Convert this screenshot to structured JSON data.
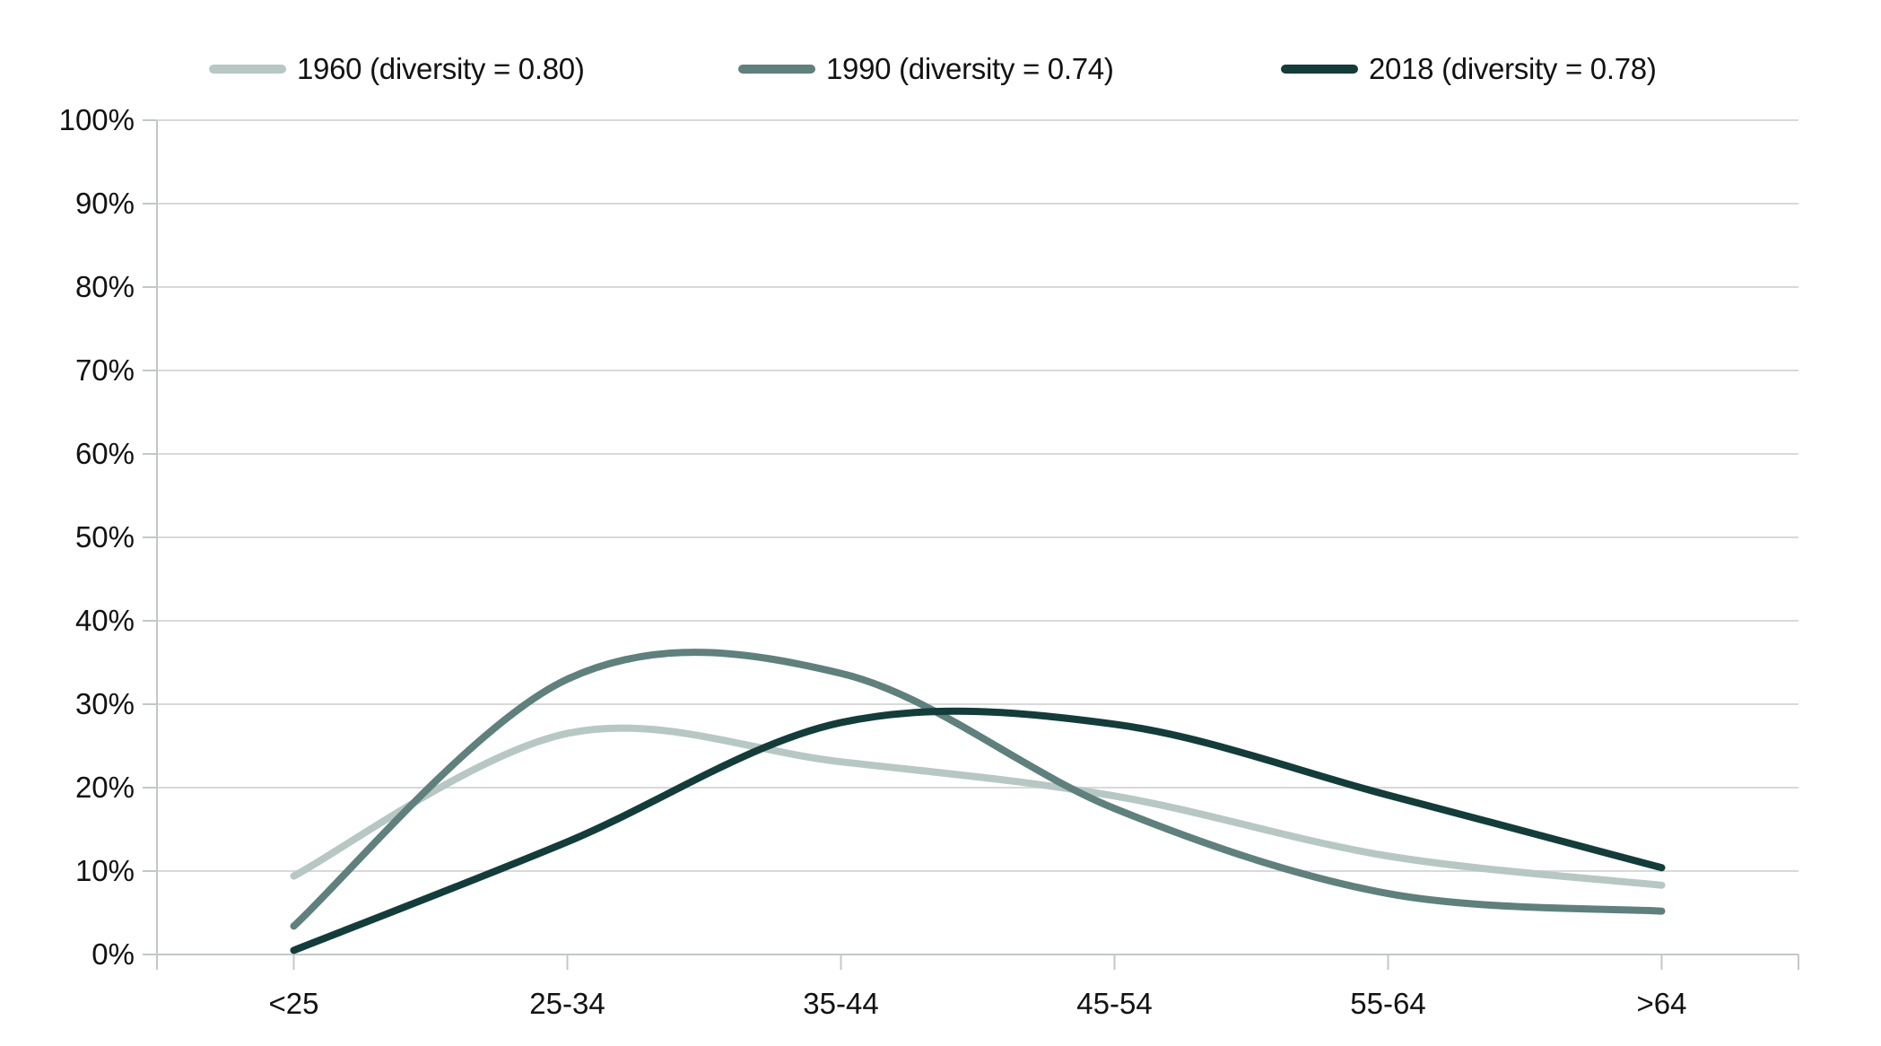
{
  "chart_data": {
    "type": "line",
    "title": "",
    "xlabel": "",
    "ylabel": "",
    "categories": [
      "<25",
      "25-34",
      "35-44",
      "45-54",
      "55-64",
      ">64"
    ],
    "y_tick_labels": [
      "0%",
      "10%",
      "20%",
      "30%",
      "40%",
      "50%",
      "60%",
      "70%",
      "80%",
      "90%",
      "100%"
    ],
    "ylim": [
      0,
      100
    ],
    "grid": "horizontal",
    "legend_position": "top",
    "curve_style": "smooth",
    "series": [
      {
        "name": "1960 (diversity = 0.80)",
        "color": "#b7c7c4",
        "values": [
          9.4,
          26.5,
          23.1,
          19.0,
          11.8,
          8.3
        ]
      },
      {
        "name": "1990 (diversity = 0.74)",
        "color": "#5f807d",
        "values": [
          3.4,
          33.0,
          33.7,
          17.5,
          7.3,
          5.2
        ]
      },
      {
        "name": "2018 (diversity = 0.78)",
        "color": "#133c3a",
        "values": [
          0.5,
          13.5,
          27.8,
          27.6,
          19.1,
          10.4
        ]
      }
    ],
    "colors": {
      "gridline": "#d9d9d9",
      "axis": "#c3c8c7",
      "text": "#121212",
      "background": "#ffffff"
    }
  }
}
